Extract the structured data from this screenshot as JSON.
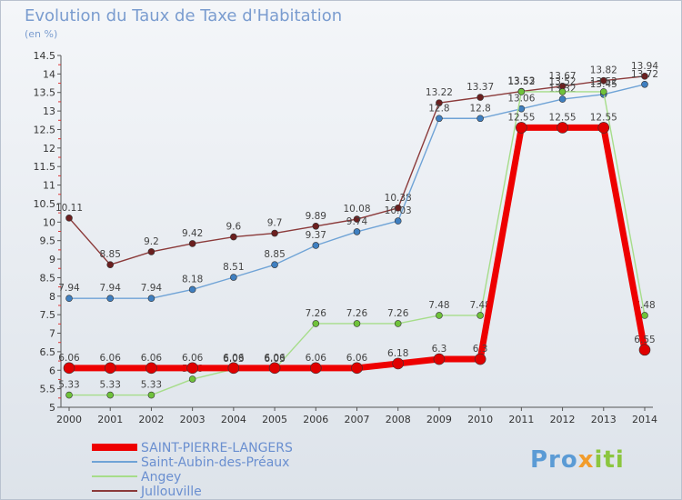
{
  "title": "Evolution du Taux de Taxe d'Habitation",
  "unit": "(en %)",
  "logo": {
    "p1": "Pro",
    "p2": "x",
    "p3": "iti"
  },
  "chart_data": {
    "type": "line",
    "x": [
      2000,
      2001,
      2002,
      2003,
      2004,
      2005,
      2006,
      2007,
      2008,
      2009,
      2010,
      2011,
      2012,
      2013,
      2014
    ],
    "ylim": [
      5,
      14.5
    ],
    "yticks": [
      "5",
      "5.5",
      "6",
      "6.5",
      "7",
      "7.5",
      "8",
      "8.5",
      "9",
      "9.5",
      "10",
      "10.5",
      "11",
      "11.5",
      "12",
      "12.5",
      "13",
      "13.5",
      "14",
      "14.5"
    ],
    "grid": false,
    "legend_position": "bottom-left",
    "series": [
      {
        "name": "Jullouville",
        "color": "#8b3a3a",
        "dot": "#6b1f1f",
        "width": 1.4,
        "r": 3.5,
        "values": [
          10.11,
          8.85,
          9.2,
          9.42,
          9.6,
          9.7,
          9.89,
          10.08,
          10.38,
          13.22,
          13.37,
          13.53,
          13.67,
          13.82,
          13.94
        ],
        "labels": [
          "10.11",
          "8.85",
          "9.2",
          "9.42",
          "9.6",
          "9.7",
          "9.89",
          "10.08",
          "10.38",
          "13.22",
          "13.37",
          "13.53",
          "13.67",
          "13.82",
          "13.94"
        ]
      },
      {
        "name": "Saint-Aubin-des-Préaux",
        "color": "#6fa3d6",
        "dot": "#3f7fc0",
        "width": 1.4,
        "r": 3.5,
        "values": [
          7.94,
          7.94,
          7.94,
          8.18,
          8.51,
          8.85,
          9.37,
          9.74,
          10.03,
          12.8,
          12.8,
          13.06,
          13.32,
          13.45,
          13.72
        ],
        "labels": [
          "7.94",
          "7.94",
          "7.94",
          "8.18",
          "8.51",
          "8.85",
          "9.37",
          "9.74",
          "10.03",
          "12.8",
          "12.8",
          "13.06",
          "13.32",
          "13.45",
          "13.72"
        ]
      },
      {
        "name": "Angey",
        "color": "#a6dd8a",
        "dot": "#6fc23a",
        "width": 1.4,
        "r": 3.5,
        "values": [
          5.33,
          5.33,
          5.33,
          5.76,
          6.03,
          6.03,
          7.26,
          7.26,
          7.26,
          7.48,
          7.48,
          13.52,
          13.52,
          13.52,
          7.48
        ],
        "labels": [
          "5.33",
          "5.33",
          "5.33",
          "5.76",
          "6.03",
          "6.03",
          "7.26",
          "7.26",
          "7.26",
          "7.48",
          "7.48",
          "13.52",
          "13.52",
          "13.52",
          "7.48"
        ]
      },
      {
        "name": "SAINT-PIERRE-LANGERS",
        "color": "#ee0000",
        "dot": "#e00000",
        "width": 7,
        "r": 6,
        "values": [
          6.06,
          6.06,
          6.06,
          6.06,
          6.06,
          6.06,
          6.06,
          6.06,
          6.18,
          6.3,
          6.3,
          12.55,
          12.55,
          12.55,
          6.55
        ],
        "labels": [
          "6.06",
          "6.06",
          "6.06",
          "6.06",
          "6.06",
          "6.06",
          "6.06",
          "6.06",
          "6.18",
          "6.3",
          "6.3",
          "12.55",
          "12.55",
          "12.55",
          "6.55"
        ]
      }
    ],
    "legend": [
      "SAINT-PIERRE-LANGERS",
      "Saint-Aubin-des-Préaux",
      "Angey",
      "Jullouville"
    ]
  }
}
